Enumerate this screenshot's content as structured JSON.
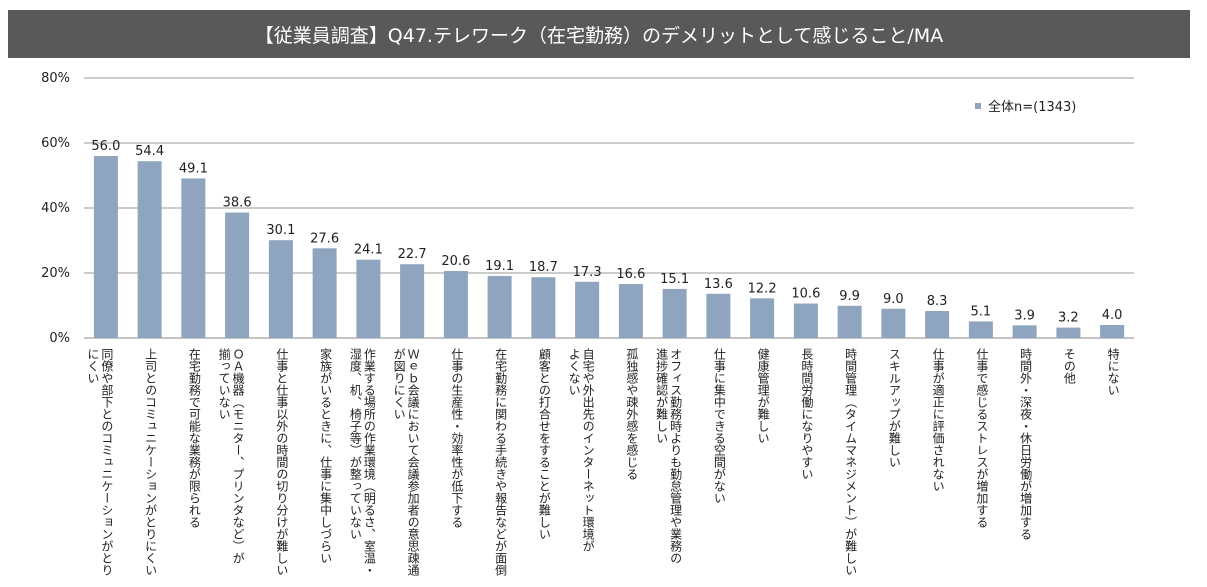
{
  "chart_data": {
    "type": "bar",
    "title": "【従業員調査】Q47.テレワーク（在宅勤務）のデメリットとして感じること/MA",
    "ylim": [
      0,
      80
    ],
    "yticks": [
      "0%",
      "20%",
      "40%",
      "60%",
      "80%"
    ],
    "grid": true,
    "legend_position": "top-right",
    "color": "#8EA4BF",
    "categories": [
      [
        "同僚や部下とのコミュニケーションがとり",
        "にくい"
      ],
      [
        "上司とのコミュニケーションがとりにくい"
      ],
      [
        "在宅勤務で可能な業務が限られる"
      ],
      [
        "ＯＡ機器（モニター、プリンタなど）が",
        "揃っていない"
      ],
      [
        "仕事と仕事以外の時間の切り分けが難しい"
      ],
      [
        "家族がいるときに、仕事に集中しづらい"
      ],
      [
        "作業する場所の作業環境（明るさ、室温・",
        "湿度、机、椅子等）が整っていない"
      ],
      [
        "Ｗｅｂ会議において会議参加者の意思疎通",
        "が図りにくい"
      ],
      [
        "仕事の生産性・効率性が低下する"
      ],
      [
        "在宅勤務に関わる手続きや報告などが面倒"
      ],
      [
        "顧客との打合せをすることが難しい"
      ],
      [
        "自宅や外出先のインターネット環境が",
        "よくない"
      ],
      [
        "孤独感や疎外感を感じる"
      ],
      [
        "オフィス勤務時よりも勤怠管理や業務の",
        "進捗確認が難しい"
      ],
      [
        "仕事に集中できる空間がない"
      ],
      [
        "健康管理が難しい"
      ],
      [
        "長時間労働になりやすい"
      ],
      [
        "時間管理（タイムマネジメント）が難しい"
      ],
      [
        "スキルアップが難しい"
      ],
      [
        "仕事が適正に評価されない"
      ],
      [
        "仕事で感じるストレスが増加する"
      ],
      [
        "時間外・深夜・休日労働が増加する"
      ],
      [
        "その他"
      ],
      [
        "特にない"
      ]
    ],
    "series": [
      {
        "name": "全体n=(1343)",
        "values": [
          56.0,
          54.4,
          49.1,
          38.6,
          30.1,
          27.6,
          24.1,
          22.7,
          20.6,
          19.1,
          18.7,
          17.3,
          16.6,
          15.1,
          13.6,
          12.2,
          10.6,
          9.9,
          9.0,
          8.3,
          5.1,
          3.9,
          3.2,
          4.0
        ],
        "labels": [
          "56.0",
          "54.4",
          "49.1",
          "38.6",
          "30.1",
          "27.6",
          "24.1",
          "22.7",
          "20.6",
          "19.1",
          "18.7",
          "17.3",
          "16.6",
          "15.1",
          "13.6",
          "12.2",
          "10.6",
          "9.9",
          "9.0",
          "8.3",
          "5.1",
          "3.9",
          "3.2",
          "4.0"
        ]
      }
    ]
  }
}
